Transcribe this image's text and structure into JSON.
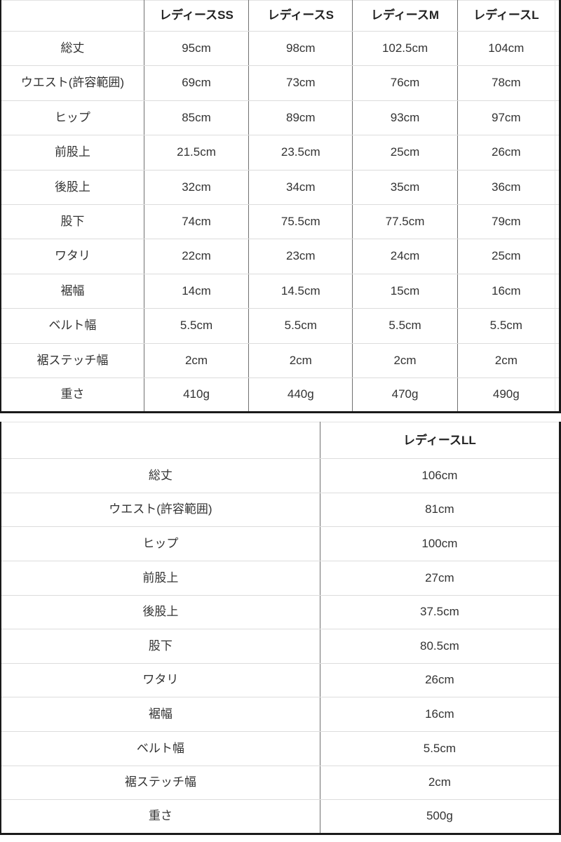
{
  "page": {
    "background": "#ffffff"
  },
  "colors": {
    "text": "#333333",
    "header_text": "#222222",
    "row_rule": "#dcdcdc",
    "column_divider": "#707070",
    "outer_border": "#1a1a1a"
  },
  "chart_data": [
    {
      "type": "table",
      "title": "",
      "size_headers": [
        "レディースSS",
        "レディースS",
        "レディースM",
        "レディースL"
      ],
      "rows": [
        {
          "label": "総丈",
          "values": [
            "95cm",
            "98cm",
            "102.5cm",
            "104cm"
          ]
        },
        {
          "label": "ウエスト(許容範囲)",
          "values": [
            "69cm",
            "73cm",
            "76cm",
            "78cm"
          ]
        },
        {
          "label": "ヒップ",
          "values": [
            "85cm",
            "89cm",
            "93cm",
            "97cm"
          ]
        },
        {
          "label": "前股上",
          "values": [
            "21.5cm",
            "23.5cm",
            "25cm",
            "26cm"
          ]
        },
        {
          "label": "後股上",
          "values": [
            "32cm",
            "34cm",
            "35cm",
            "36cm"
          ]
        },
        {
          "label": "股下",
          "values": [
            "74cm",
            "75.5cm",
            "77.5cm",
            "79cm"
          ]
        },
        {
          "label": "ワタリ",
          "values": [
            "22cm",
            "23cm",
            "24cm",
            "25cm"
          ]
        },
        {
          "label": "裾幅",
          "values": [
            "14cm",
            "14.5cm",
            "15cm",
            "16cm"
          ]
        },
        {
          "label": "ベルト幅",
          "values": [
            "5.5cm",
            "5.5cm",
            "5.5cm",
            "5.5cm"
          ]
        },
        {
          "label": "裾ステッチ幅",
          "values": [
            "2cm",
            "2cm",
            "2cm",
            "2cm"
          ]
        },
        {
          "label": "重さ",
          "values": [
            "410g",
            "440g",
            "470g",
            "490g"
          ]
        }
      ]
    },
    {
      "type": "table",
      "title": "",
      "size_headers": [
        "レディースLL"
      ],
      "rows": [
        {
          "label": "総丈",
          "values": [
            "106cm"
          ]
        },
        {
          "label": "ウエスト(許容範囲)",
          "values": [
            "81cm"
          ]
        },
        {
          "label": "ヒップ",
          "values": [
            "100cm"
          ]
        },
        {
          "label": "前股上",
          "values": [
            "27cm"
          ]
        },
        {
          "label": "後股上",
          "values": [
            "37.5cm"
          ]
        },
        {
          "label": "股下",
          "values": [
            "80.5cm"
          ]
        },
        {
          "label": "ワタリ",
          "values": [
            "26cm"
          ]
        },
        {
          "label": "裾幅",
          "values": [
            "16cm"
          ]
        },
        {
          "label": "ベルト幅",
          "values": [
            "5.5cm"
          ]
        },
        {
          "label": "裾ステッチ幅",
          "values": [
            "2cm"
          ]
        },
        {
          "label": "重さ",
          "values": [
            "500g"
          ]
        }
      ]
    }
  ]
}
